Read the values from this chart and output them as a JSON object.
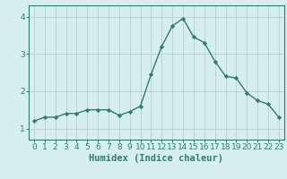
{
  "x": [
    0,
    1,
    2,
    3,
    4,
    5,
    6,
    7,
    8,
    9,
    10,
    11,
    12,
    13,
    14,
    15,
    16,
    17,
    18,
    19,
    20,
    21,
    22,
    23
  ],
  "y": [
    1.2,
    1.3,
    1.3,
    1.4,
    1.4,
    1.5,
    1.5,
    1.5,
    1.35,
    1.45,
    1.6,
    2.45,
    3.2,
    3.75,
    3.95,
    3.45,
    3.3,
    2.8,
    2.4,
    2.35,
    1.95,
    1.75,
    1.65,
    1.3
  ],
  "line_color": "#2e7d6e",
  "marker": "D",
  "marker_size": 2.2,
  "bg_color": "#d6eeed",
  "grid_color": "#b5cece",
  "xlabel": "Humidex (Indice chaleur)",
  "xlabel_fontsize": 7.5,
  "tick_fontsize": 6.5,
  "yticks": [
    1,
    2,
    3,
    4
  ],
  "ylim": [
    0.7,
    4.3
  ],
  "xlim": [
    -0.5,
    23.5
  ]
}
